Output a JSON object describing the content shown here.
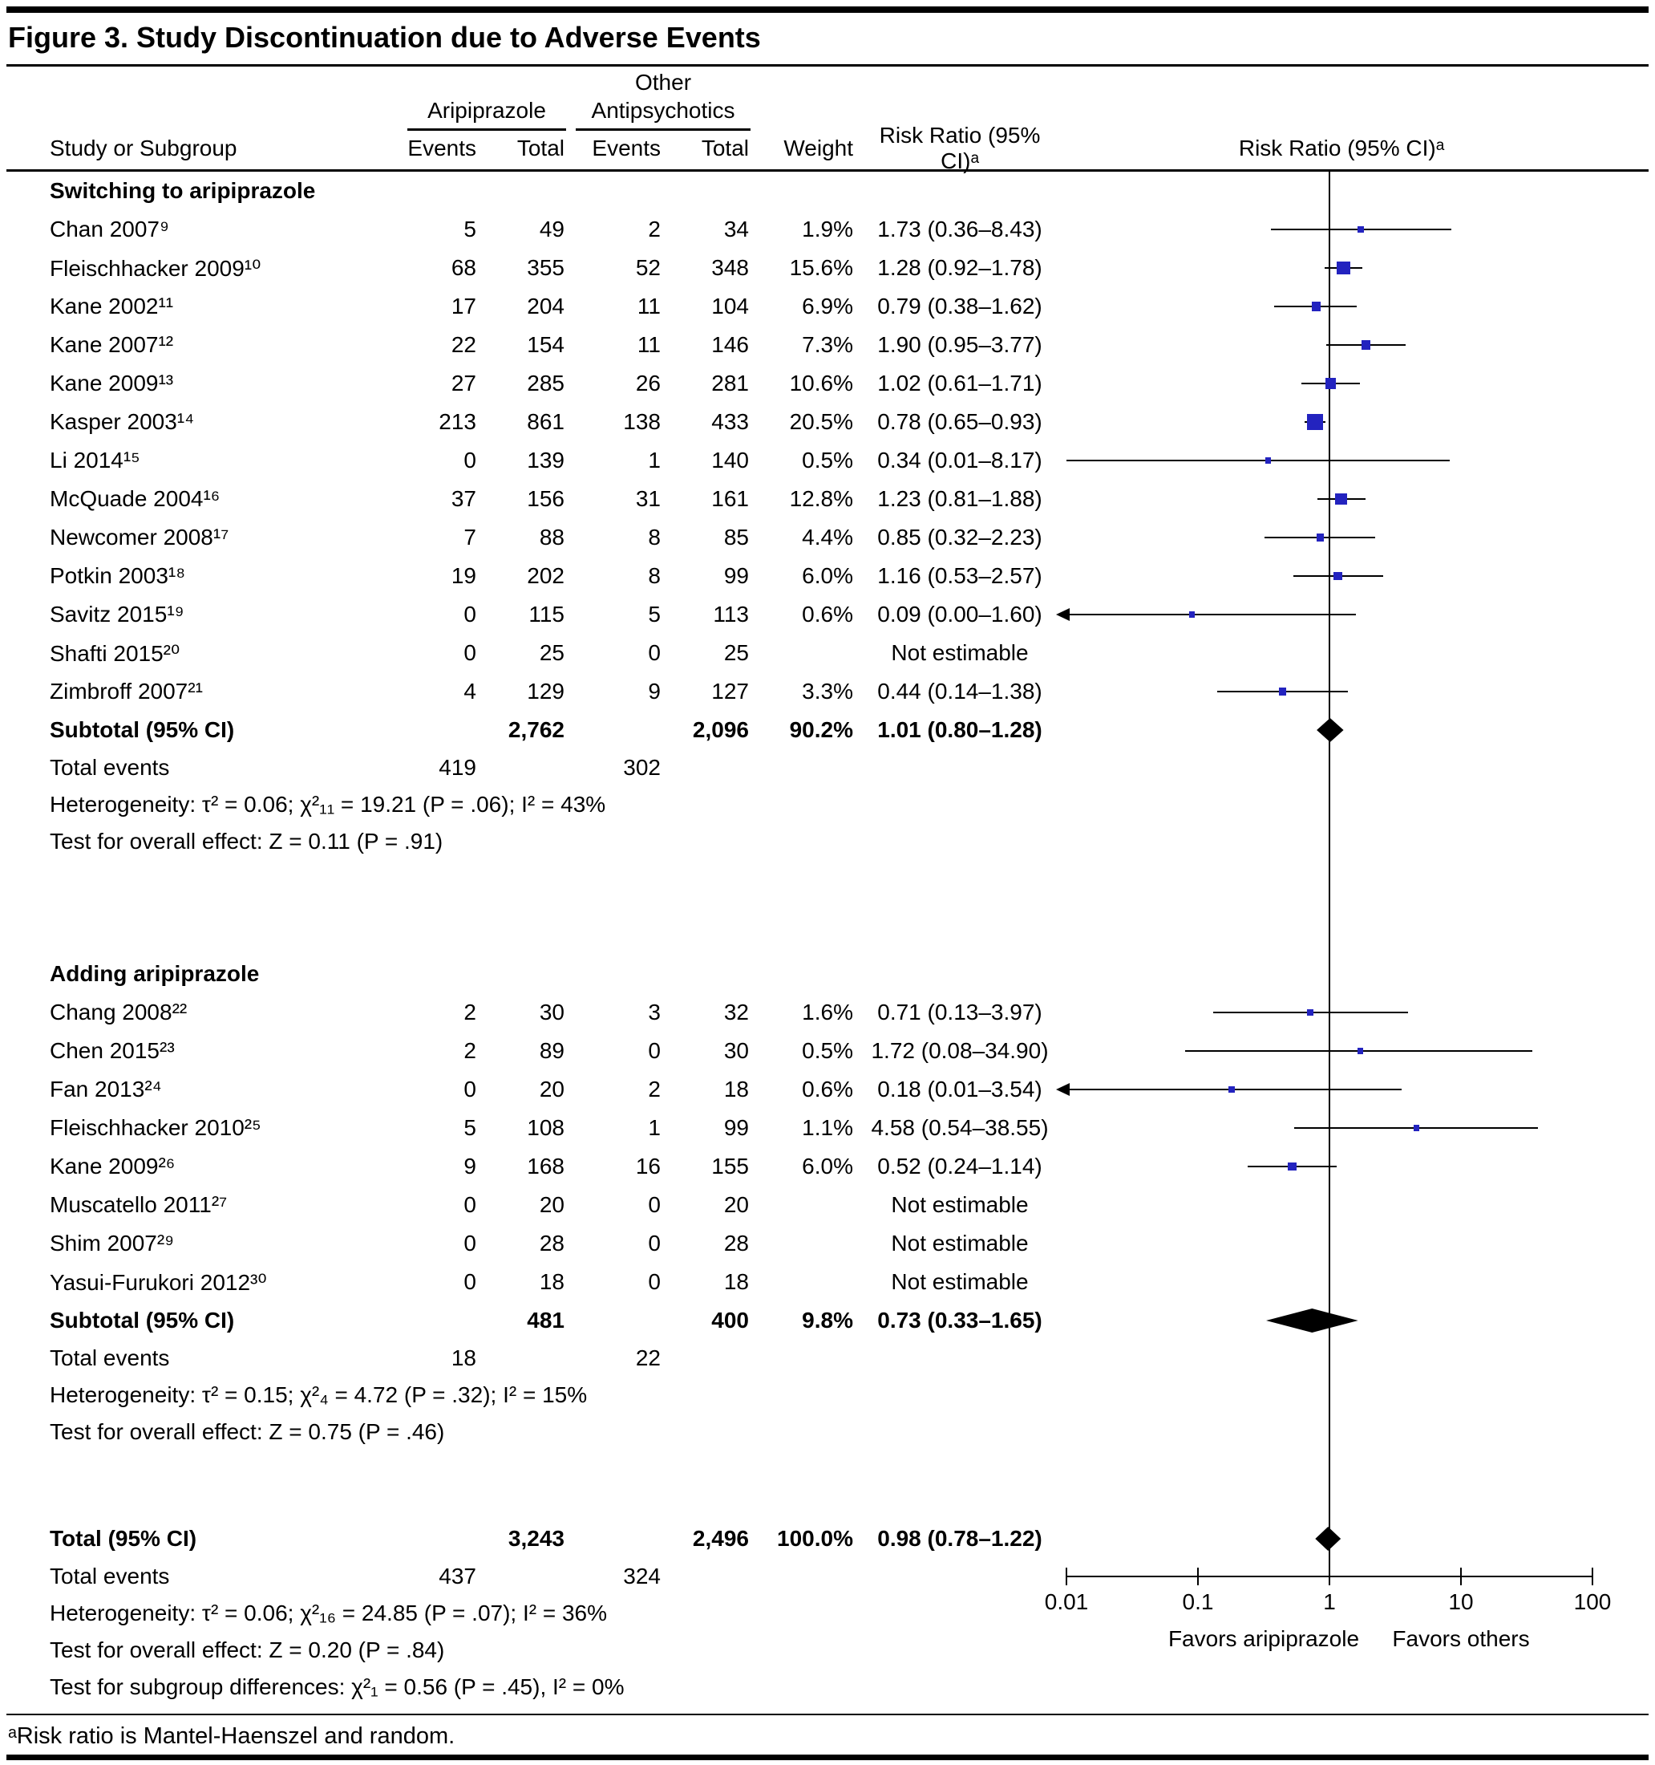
{
  "figure": {
    "title": "Figure 3. Study Discontinuation due to Adverse Events",
    "footnote": "ᵃRisk ratio is Mantel-Haenszel and random."
  },
  "header": {
    "study": "Study or Subgroup",
    "aripiprazole": "Aripiprazole",
    "other_line1": "Other",
    "other_line2": "Antipsychotics",
    "events": "Events",
    "total": "Total",
    "weight": "Weight",
    "risk_ratio": "Risk Ratio (95% CI)ᵃ"
  },
  "labels": {
    "subtotal": "Subtotal (95% CI)",
    "total_events": "Total events",
    "total": "Total (95% CI)",
    "not_estimable": "Not estimable"
  },
  "axis": {
    "tick_values": [
      0.01,
      0.1,
      1,
      10,
      100
    ],
    "tick_labels": [
      "0.01",
      "0.1",
      "1",
      "10",
      "100"
    ],
    "favors_left": "Favors aripiprazole",
    "favors_right": "Favors others"
  },
  "colors": {
    "marker_blue": "#2323bf",
    "ink": "#000000"
  },
  "chart_data": {
    "type": "scatter",
    "x_scale": "log",
    "xlim": [
      0.01,
      100
    ],
    "title": "Figure 3. Study Discontinuation due to Adverse Events",
    "x_axis_label_left": "Favors aripiprazole",
    "x_axis_label_right": "Favors others",
    "groups": [
      {
        "name": "Switching to aripiprazole",
        "studies": [
          {
            "label": "Chan 2007⁹",
            "e1": "5",
            "t1": "49",
            "e2": "2",
            "t2": "34",
            "weight": "1.9%",
            "rr_text": "1.73 (0.36–8.43)",
            "rr": 1.73,
            "lo": 0.36,
            "hi": 8.43,
            "w": 1.9
          },
          {
            "label": "Fleischhacker 2009¹⁰",
            "e1": "68",
            "t1": "355",
            "e2": "52",
            "t2": "348",
            "weight": "15.6%",
            "rr_text": "1.28 (0.92–1.78)",
            "rr": 1.28,
            "lo": 0.92,
            "hi": 1.78,
            "w": 15.6
          },
          {
            "label": "Kane 2002¹¹",
            "e1": "17",
            "t1": "204",
            "e2": "11",
            "t2": "104",
            "weight": "6.9%",
            "rr_text": "0.79 (0.38–1.62)",
            "rr": 0.79,
            "lo": 0.38,
            "hi": 1.62,
            "w": 6.9
          },
          {
            "label": "Kane 2007¹²",
            "e1": "22",
            "t1": "154",
            "e2": "11",
            "t2": "146",
            "weight": "7.3%",
            "rr_text": "1.90 (0.95–3.77)",
            "rr": 1.9,
            "lo": 0.95,
            "hi": 3.77,
            "w": 7.3
          },
          {
            "label": "Kane 2009¹³",
            "e1": "27",
            "t1": "285",
            "e2": "26",
            "t2": "281",
            "weight": "10.6%",
            "rr_text": "1.02 (0.61–1.71)",
            "rr": 1.02,
            "lo": 0.61,
            "hi": 1.71,
            "w": 10.6
          },
          {
            "label": "Kasper 2003¹⁴",
            "e1": "213",
            "t1": "861",
            "e2": "138",
            "t2": "433",
            "weight": "20.5%",
            "rr_text": "0.78 (0.65–0.93)",
            "rr": 0.78,
            "lo": 0.65,
            "hi": 0.93,
            "w": 20.5
          },
          {
            "label": "Li 2014¹⁵",
            "e1": "0",
            "t1": "139",
            "e2": "1",
            "t2": "140",
            "weight": "0.5%",
            "rr_text": "0.34 (0.01–8.17)",
            "rr": 0.34,
            "lo": 0.01,
            "hi": 8.17,
            "w": 0.5
          },
          {
            "label": "McQuade 2004¹⁶",
            "e1": "37",
            "t1": "156",
            "e2": "31",
            "t2": "161",
            "weight": "12.8%",
            "rr_text": "1.23 (0.81–1.88)",
            "rr": 1.23,
            "lo": 0.81,
            "hi": 1.88,
            "w": 12.8
          },
          {
            "label": "Newcomer 2008¹⁷",
            "e1": "7",
            "t1": "88",
            "e2": "8",
            "t2": "85",
            "weight": "4.4%",
            "rr_text": "0.85 (0.32–2.23)",
            "rr": 0.85,
            "lo": 0.32,
            "hi": 2.23,
            "w": 4.4
          },
          {
            "label": "Potkin 2003¹⁸",
            "e1": "19",
            "t1": "202",
            "e2": "8",
            "t2": "99",
            "weight": "6.0%",
            "rr_text": "1.16 (0.53–2.57)",
            "rr": 1.16,
            "lo": 0.53,
            "hi": 2.57,
            "w": 6.0
          },
          {
            "label": "Savitz 2015¹⁹",
            "e1": "0",
            "t1": "115",
            "e2": "5",
            "t2": "113",
            "weight": "0.6%",
            "rr_text": "0.09 (0.00–1.60)",
            "rr": 0.09,
            "lo": 0.0,
            "hi": 1.6,
            "w": 0.6,
            "arrow": true
          },
          {
            "label": "Shafti 2015²⁰",
            "e1": "0",
            "t1": "25",
            "e2": "0",
            "t2": "25",
            "weight": "",
            "rr_text": "Not estimable"
          },
          {
            "label": "Zimbroff 2007²¹",
            "e1": "4",
            "t1": "129",
            "e2": "9",
            "t2": "127",
            "weight": "3.3%",
            "rr_text": "0.44 (0.14–1.38)",
            "rr": 0.44,
            "lo": 0.14,
            "hi": 1.38,
            "w": 3.3
          }
        ],
        "subtotal": {
          "t1": "2,762",
          "t2": "2,096",
          "weight": "90.2%",
          "rr_text": "1.01 (0.80–1.28)",
          "rr": 1.01,
          "lo": 0.8,
          "hi": 1.28
        },
        "total_events": {
          "e1": "419",
          "e2": "302"
        },
        "heterogeneity": "Heterogeneity: τ² = 0.06; χ²₁₁ = 19.21 (P = .06); I² = 43%",
        "overall_effect": "Test for overall effect: Z = 0.11 (P = .91)"
      },
      {
        "name": "Adding aripiprazole",
        "studies": [
          {
            "label": "Chang 2008²²",
            "e1": "2",
            "t1": "30",
            "e2": "3",
            "t2": "32",
            "weight": "1.6%",
            "rr_text": "0.71 (0.13–3.97)",
            "rr": 0.71,
            "lo": 0.13,
            "hi": 3.97,
            "w": 1.6
          },
          {
            "label": "Chen 2015²³",
            "e1": "2",
            "t1": "89",
            "e2": "0",
            "t2": "30",
            "weight": "0.5%",
            "rr_text": "1.72 (0.08–34.90)",
            "rr": 1.72,
            "lo": 0.08,
            "hi": 34.9,
            "w": 0.5
          },
          {
            "label": "Fan 2013²⁴",
            "e1": "0",
            "t1": "20",
            "e2": "2",
            "t2": "18",
            "weight": "0.6%",
            "rr_text": "0.18 (0.01–3.54)",
            "rr": 0.18,
            "lo": 0.01,
            "hi": 3.54,
            "w": 0.6,
            "arrow": true
          },
          {
            "label": "Fleischhacker 2010²⁵",
            "e1": "5",
            "t1": "108",
            "e2": "1",
            "t2": "99",
            "weight": "1.1%",
            "rr_text": "4.58 (0.54–38.55)",
            "rr": 4.58,
            "lo": 0.54,
            "hi": 38.55,
            "w": 1.1
          },
          {
            "label": "Kane 2009²⁶",
            "e1": "9",
            "t1": "168",
            "e2": "16",
            "t2": "155",
            "weight": "6.0%",
            "rr_text": "0.52 (0.24–1.14)",
            "rr": 0.52,
            "lo": 0.24,
            "hi": 1.14,
            "w": 6.0
          },
          {
            "label": "Muscatello 2011²⁷",
            "e1": "0",
            "t1": "20",
            "e2": "0",
            "t2": "20",
            "weight": "",
            "rr_text": "Not estimable"
          },
          {
            "label": "Shim 2007²⁹",
            "e1": "0",
            "t1": "28",
            "e2": "0",
            "t2": "28",
            "weight": "",
            "rr_text": "Not estimable"
          },
          {
            "label": "Yasui-Furukori 2012³⁰",
            "e1": "0",
            "t1": "18",
            "e2": "0",
            "t2": "18",
            "weight": "",
            "rr_text": "Not estimable"
          }
        ],
        "subtotal": {
          "t1": "481",
          "t2": "400",
          "weight": "9.8%",
          "rr_text": "0.73 (0.33–1.65)",
          "rr": 0.73,
          "lo": 0.33,
          "hi": 1.65
        },
        "total_events": {
          "e1": "18",
          "e2": "22"
        },
        "heterogeneity": "Heterogeneity: τ² = 0.15; χ²₄ = 4.72 (P = .32); I² = 15%",
        "overall_effect": "Test for overall effect: Z = 0.75 (P = .46)"
      }
    ],
    "total": {
      "t1": "3,243",
      "t2": "2,496",
      "weight": "100.0%",
      "rr_text": "0.98 (0.78–1.22)",
      "rr": 0.98,
      "lo": 0.78,
      "hi": 1.22,
      "total_events": {
        "e1": "437",
        "e2": "324"
      },
      "heterogeneity": "Heterogeneity: τ² = 0.06; χ²₁₆ = 24.85 (P = .07); I² = 36%",
      "overall_effect": "Test for overall effect: Z = 0.20 (P = .84)",
      "subgroup_differences": "Test for subgroup differences: χ²₁ = 0.56 (P = .45), I² = 0%"
    }
  }
}
